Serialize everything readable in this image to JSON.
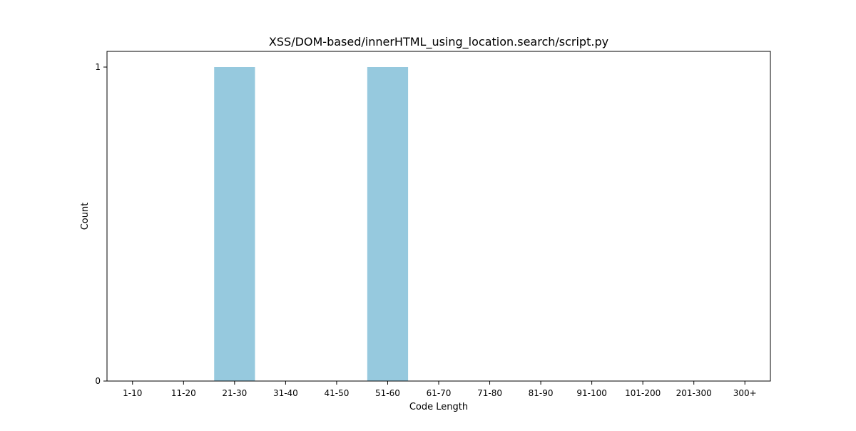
{
  "chart_data": {
    "type": "bar",
    "title": "XSS/DOM-based/innerHTML_using_location.search/script.py",
    "xlabel": "Code Length",
    "ylabel": "Count",
    "categories": [
      "1-10",
      "11-20",
      "21-30",
      "31-40",
      "41-50",
      "51-60",
      "61-70",
      "71-80",
      "81-90",
      "91-100",
      "101-200",
      "201-300",
      "300+"
    ],
    "values": [
      0,
      0,
      1,
      0,
      0,
      1,
      0,
      0,
      0,
      0,
      0,
      0,
      0
    ],
    "ylim": [
      0,
      1.05
    ],
    "yticks": [
      0,
      1
    ],
    "bar_color": "#96c9de",
    "grid": false,
    "legend": "none"
  }
}
